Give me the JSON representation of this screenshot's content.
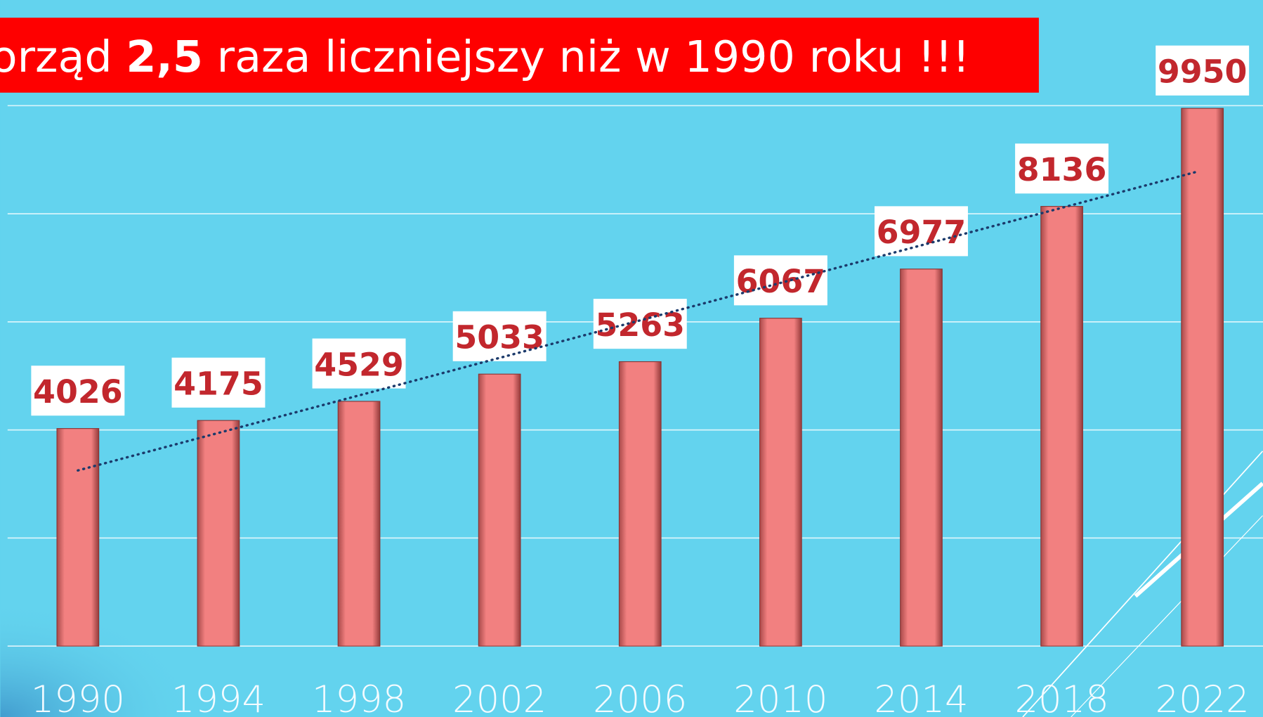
{
  "chart_data": {
    "type": "bar",
    "title": [
      "orząd ",
      "2,5",
      " raza liczniejszy niż w 1990 roku !!!"
    ],
    "categories": [
      "1990",
      "1994",
      "1998",
      "2002",
      "2006",
      "2010",
      "2014",
      "2018",
      "2022"
    ],
    "values": [
      4026,
      4175,
      4529,
      5033,
      5263,
      6067,
      6977,
      8136,
      9950
    ],
    "color": "#f28080",
    "ylim": [
      0,
      12000
    ],
    "yticks": [
      0,
      2000,
      4000,
      6000,
      8000,
      10000
    ],
    "grid": true,
    "trendline": true
  }
}
